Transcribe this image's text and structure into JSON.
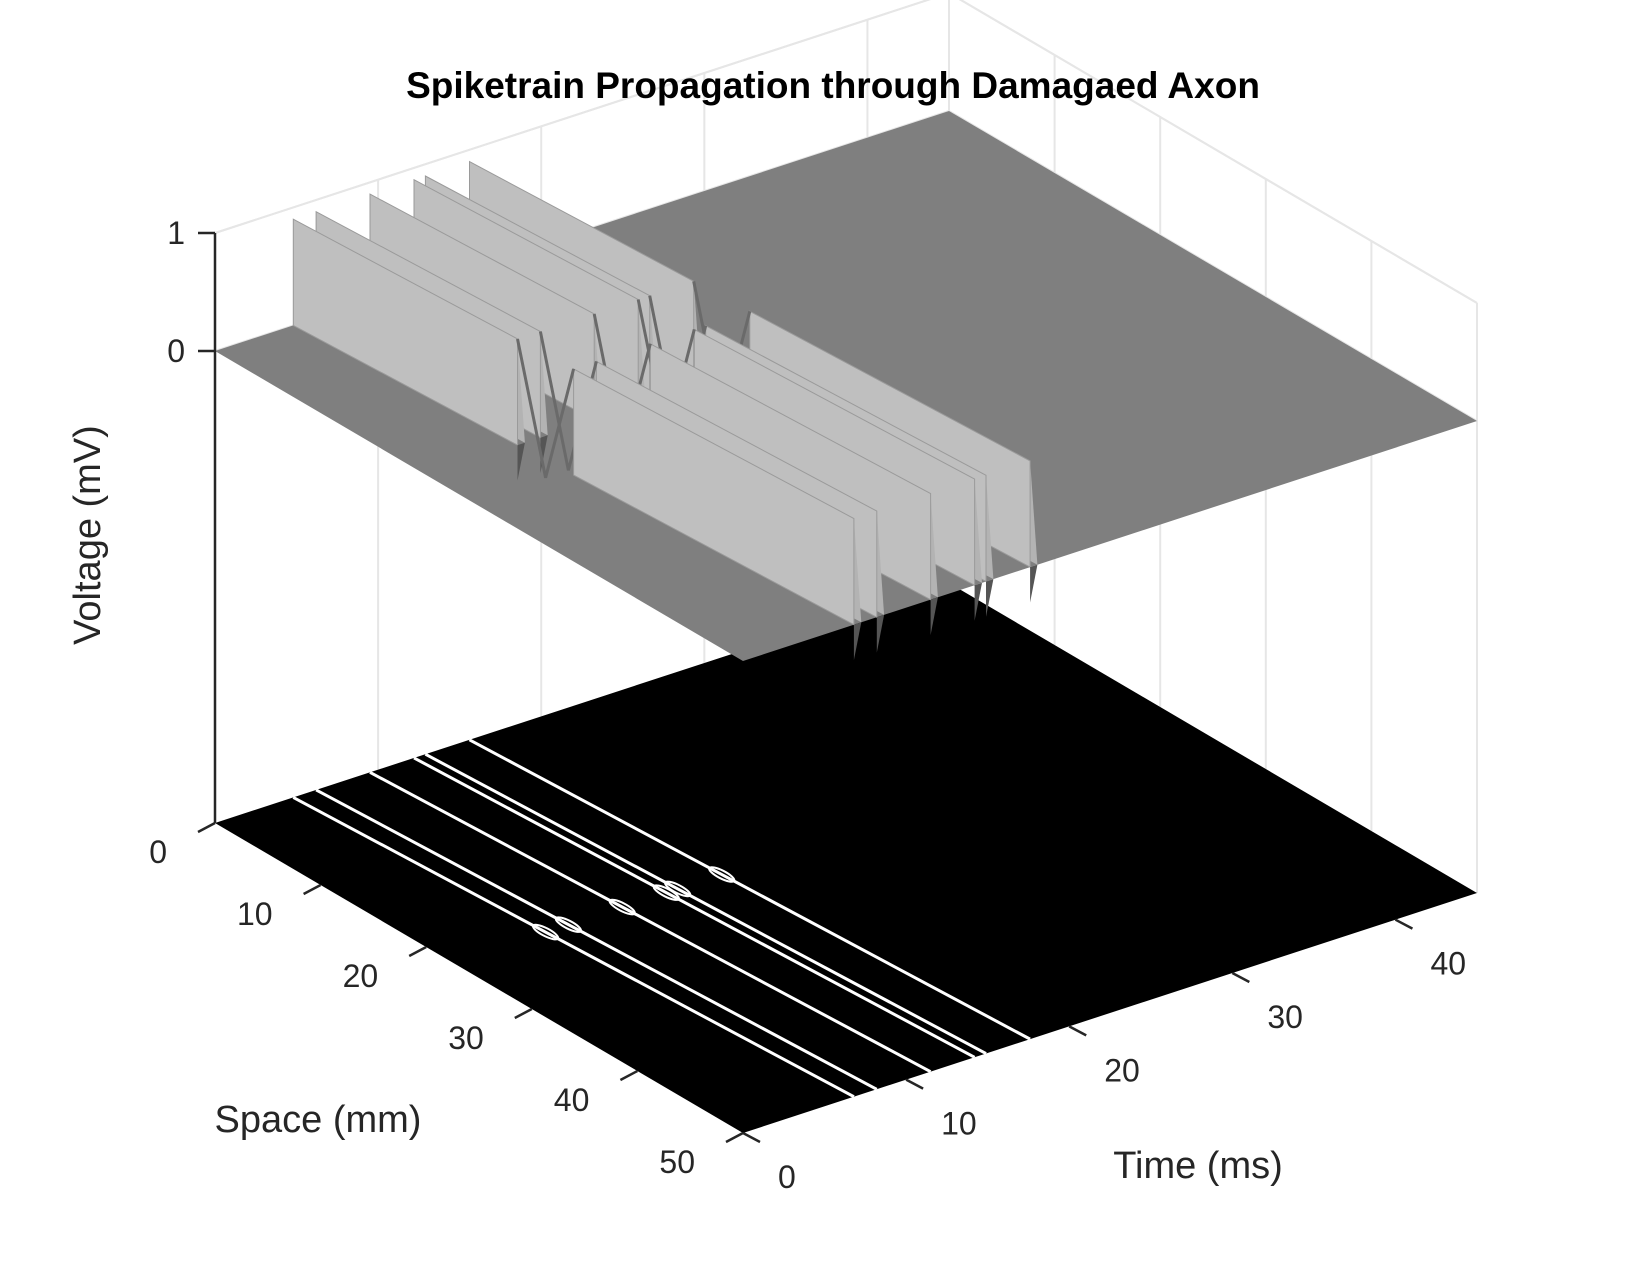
{
  "chart_data": {
    "type": "surface",
    "title": "Spiketrain Propagation through Damagaed Axon",
    "xlabel": "Space (mm)",
    "ylabel": "Time (ms)",
    "zlabel": "Voltage (mV)",
    "xlim": [
      0,
      50
    ],
    "ylim": [
      0,
      45
    ],
    "zlim": [
      -4,
      1
    ],
    "x_ticks": [
      "0",
      "10",
      "20",
      "30",
      "40",
      "50"
    ],
    "y_ticks": [
      "0",
      "10",
      "20",
      "30",
      "40"
    ],
    "z_ticks": [
      "0",
      "1"
    ],
    "grid": true,
    "colormap": "gray",
    "baseline_voltage": 0,
    "spike_peak_voltage": 0.9,
    "damage_region_space_mm": [
      20,
      25
    ],
    "spikes": [
      {
        "time_ms": 4.8,
        "velocity_mm_per_ms": 25
      },
      {
        "time_ms": 6.2,
        "velocity_mm_per_ms": 25
      },
      {
        "time_ms": 9.5,
        "velocity_mm_per_ms": 25
      },
      {
        "time_ms": 12.2,
        "velocity_mm_per_ms": 25
      },
      {
        "time_ms": 12.9,
        "velocity_mm_per_ms": 25
      },
      {
        "time_ms": 15.6,
        "velocity_mm_per_ms": 25
      }
    ],
    "contour_projection": {
      "plane": "z-min",
      "background": "#000000",
      "line_color": "#ffffff"
    }
  },
  "colors": {
    "background": "#ffffff",
    "grid": "#e6e6e6",
    "axis": "#262626",
    "surface_flat": "#7f7f7f",
    "surface_ridge": "#bfbfbf",
    "contour_floor": "#000000",
    "contour_line": "#ffffff"
  }
}
